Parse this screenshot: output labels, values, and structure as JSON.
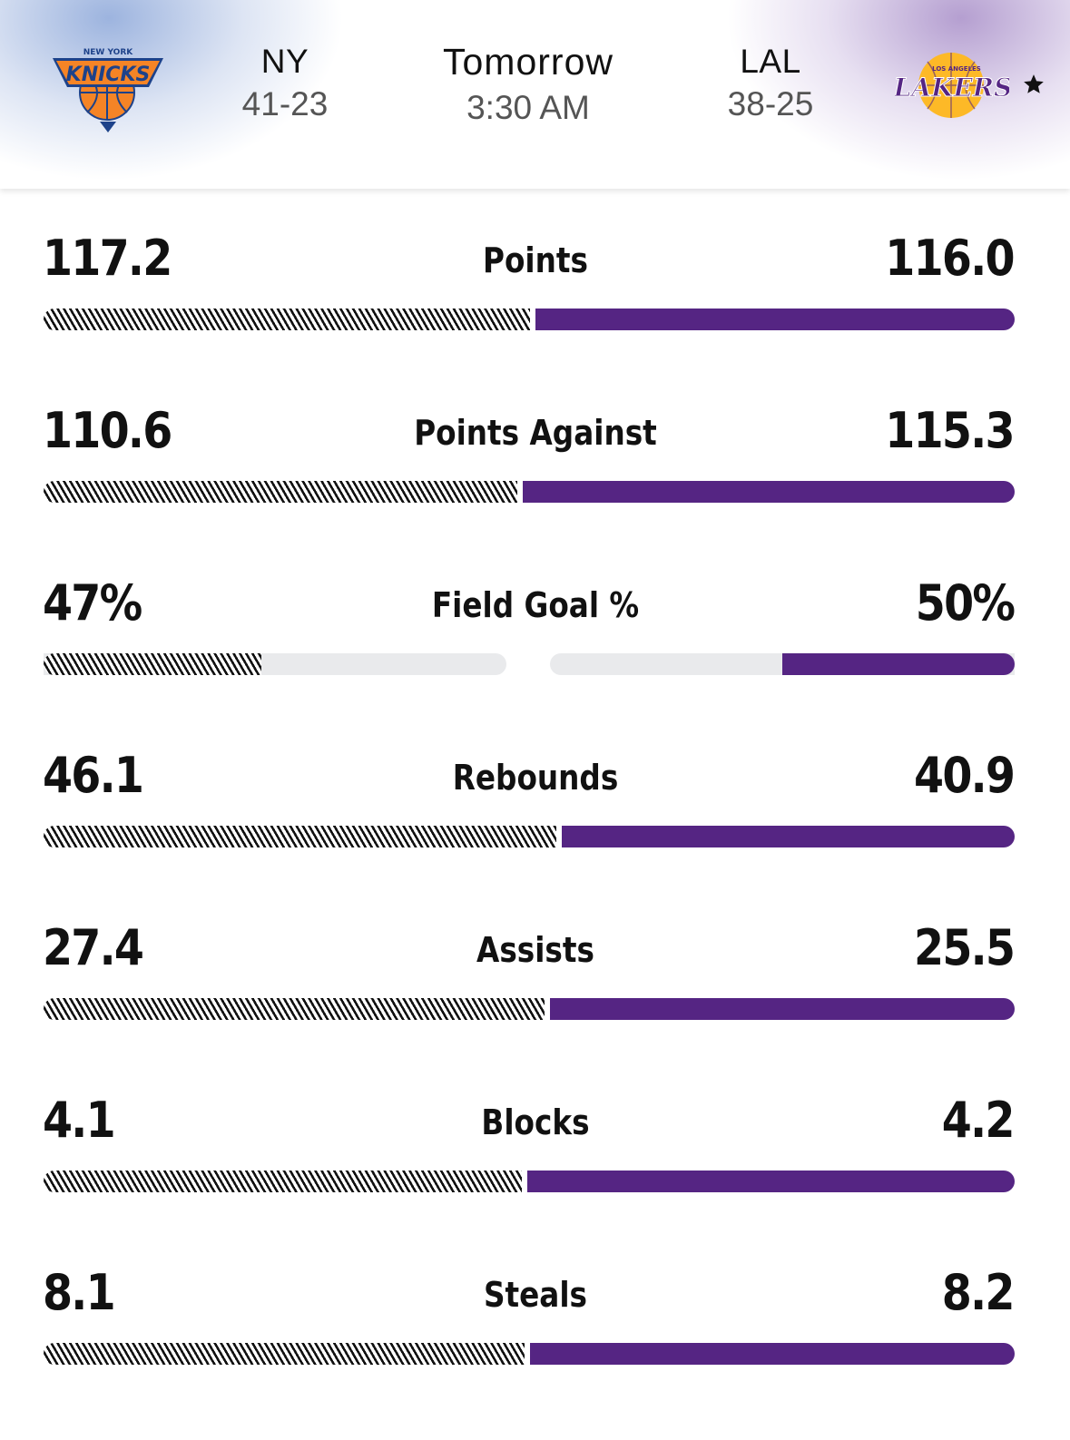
{
  "matchup": {
    "home": {
      "abbr": "NY",
      "record": "41-23",
      "logo": "knicks-logo",
      "color": "#F58426"
    },
    "away": {
      "abbr": "LAL",
      "record": "38-25",
      "logo": "lakers-logo",
      "color": "#552583"
    },
    "game": {
      "day": "Tomorrow",
      "time": "3:30 AM"
    },
    "favorite_icon": "star-icon"
  },
  "colors": {
    "home_bar": "hatched-black",
    "away_bar": "#552583",
    "track": "#E9EAEC"
  },
  "stats": [
    {
      "label": "Points",
      "home": "117.2",
      "away": "116.0",
      "type": "share",
      "home_share": 0.5026
    },
    {
      "label": "Points Against",
      "home": "110.6",
      "away": "115.3",
      "type": "share",
      "home_share": 0.4896
    },
    {
      "label": "Field Goal %",
      "home": "47%",
      "away": "50%",
      "type": "percent",
      "home_pct": 0.47,
      "away_pct": 0.5
    },
    {
      "label": "Rebounds",
      "home": "46.1",
      "away": "40.9",
      "type": "share",
      "home_share": 0.5299
    },
    {
      "label": "Assists",
      "home": "27.4",
      "away": "25.5",
      "type": "share",
      "home_share": 0.518
    },
    {
      "label": "Blocks",
      "home": "4.1",
      "away": "4.2",
      "type": "share",
      "home_share": 0.494
    },
    {
      "label": "Steals",
      "home": "8.1",
      "away": "8.2",
      "type": "share",
      "home_share": 0.4969
    }
  ]
}
